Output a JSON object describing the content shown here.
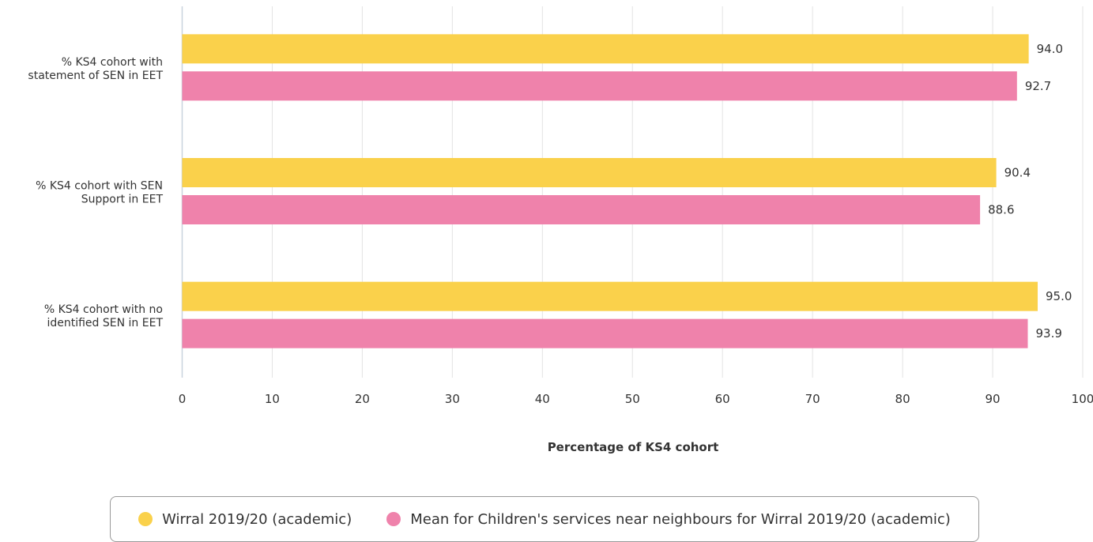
{
  "colors": {
    "wirral": "#fad14b",
    "neighbours": "#ef82ab",
    "grid": "#e3e3e3",
    "axis": "#c9d3de",
    "text": "#333333"
  },
  "chart_data": {
    "type": "bar",
    "orientation": "horizontal",
    "categories": [
      [
        "% KS4 cohort with",
        "statement of SEN in EET"
      ],
      [
        "% KS4 cohort with SEN",
        "Support in EET"
      ],
      [
        "% KS4 cohort with no",
        "identified SEN in EET"
      ]
    ],
    "series": [
      {
        "name": "Wirral 2019/20 (academic)",
        "values": [
          94.0,
          90.4,
          95.0
        ],
        "color": "#fad14b"
      },
      {
        "name": "Mean for Children's services near neighbours for Wirral 2019/20 (academic)",
        "values": [
          92.7,
          88.6,
          93.9
        ],
        "color": "#ef82ab"
      }
    ],
    "data_labels": [
      [
        "94.0",
        "90.4",
        "95.0"
      ],
      [
        "92.7",
        "88.6",
        "93.9"
      ]
    ],
    "xlabel": "Percentage of KS4 cohort",
    "ylabel": "",
    "xlim": [
      0,
      100
    ],
    "xticks": [
      "0",
      "10",
      "20",
      "30",
      "40",
      "50",
      "60",
      "70",
      "80",
      "90",
      "100"
    ],
    "grid": true,
    "legend_position": "bottom"
  }
}
